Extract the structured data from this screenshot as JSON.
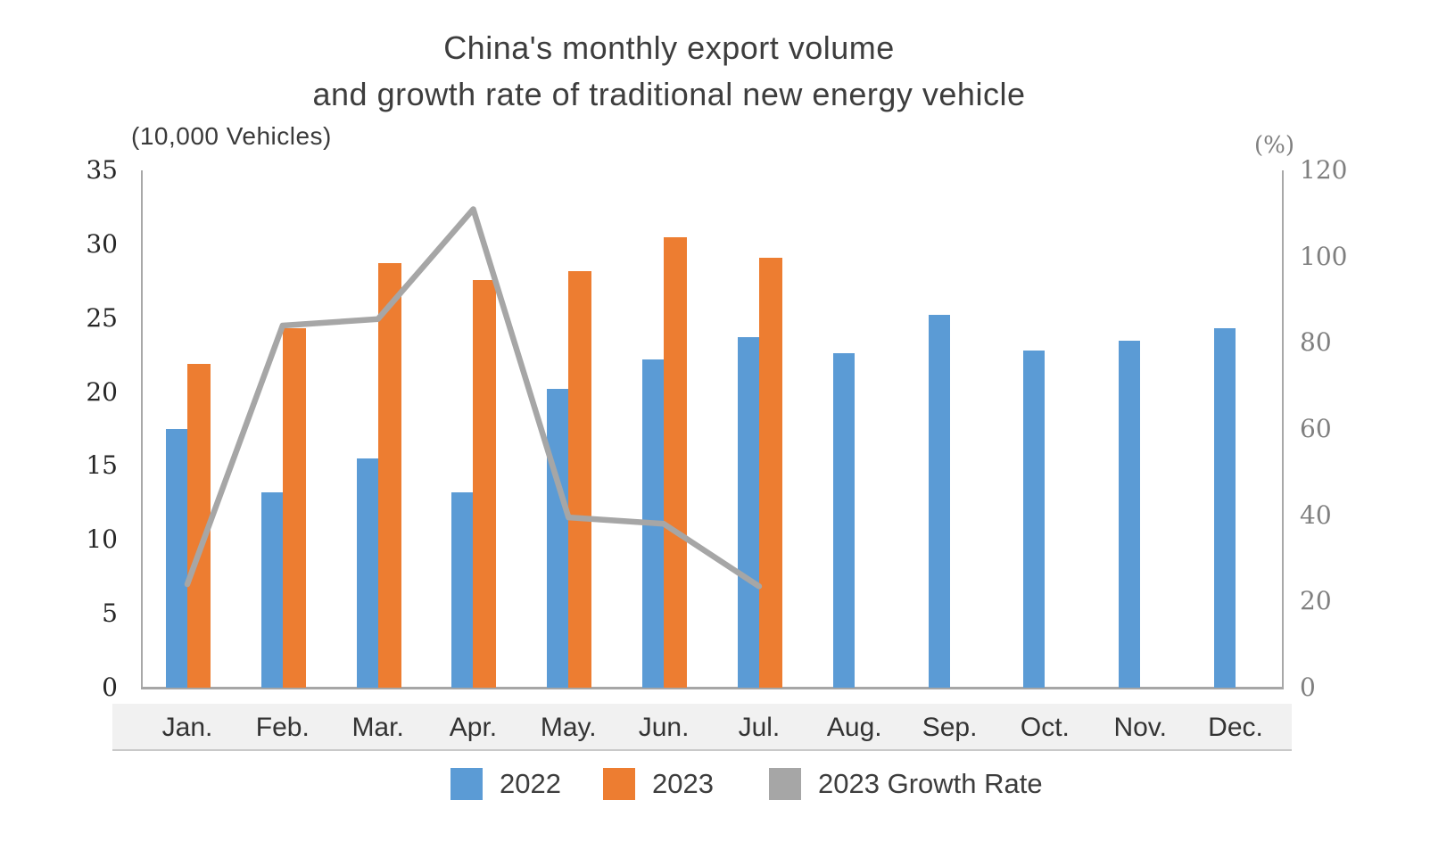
{
  "title_lines": [
    "China's monthly export volume",
    "and growth rate of traditional new energy vehicle"
  ],
  "left_axis": {
    "unit_label": "(10,000 Vehicles)",
    "ticks": [
      0,
      5,
      10,
      15,
      20,
      25,
      30,
      35
    ],
    "min": 0,
    "max": 35
  },
  "right_axis": {
    "unit_label": "(%)",
    "ticks": [
      0,
      20,
      40,
      60,
      80,
      100,
      120
    ],
    "min": 0,
    "max": 120
  },
  "legend": [
    {
      "label": "2022",
      "color": "#5B9BD5",
      "shape": "square"
    },
    {
      "label": "2023",
      "color": "#ED7D31",
      "shape": "square"
    },
    {
      "label": "2023 Growth Rate",
      "color": "#A6A6A6",
      "shape": "square"
    }
  ],
  "colors": {
    "bar_2022": "#5B9BD5",
    "bar_2023": "#ED7D31",
    "growth_line": "#A6A6A6",
    "axis_line": "#A6A6A6",
    "band_bg": "#F1F1F1",
    "title_text": "#3D3D3D",
    "left_tick_text": "#262626",
    "right_tick_text": "#7F7F7F"
  },
  "chart_data": {
    "type": "bar",
    "subtype": "grouped bars with overlay line",
    "title": "China's monthly export volume and growth rate of traditional new energy vehicle",
    "categories": [
      "Jan.",
      "Feb.",
      "Mar.",
      "Apr.",
      "May.",
      "Jun.",
      "Jul.",
      "Aug.",
      "Sep.",
      "Oct.",
      "Nov.",
      "Dec."
    ],
    "left_ylabel": "(10,000 Vehicles)",
    "right_ylabel": "(%)",
    "left_ylim": [
      0,
      35
    ],
    "right_ylim": [
      0,
      120
    ],
    "grid": false,
    "legend_position": "bottom",
    "series": [
      {
        "name": "2022",
        "type": "bar",
        "axis": "left",
        "color": "#5B9BD5",
        "values": [
          17.5,
          13.2,
          15.5,
          13.2,
          20.2,
          22.2,
          23.7,
          22.6,
          25.2,
          22.8,
          23.5,
          24.3
        ]
      },
      {
        "name": "2023",
        "type": "bar",
        "axis": "left",
        "color": "#ED7D31",
        "values": [
          21.9,
          24.3,
          28.7,
          27.6,
          28.2,
          30.5,
          29.1,
          null,
          null,
          null,
          null,
          null
        ]
      },
      {
        "name": "2023 Growth Rate",
        "type": "line",
        "axis": "right",
        "color": "#A6A6A6",
        "values": [
          24,
          84,
          85.5,
          111,
          39.5,
          38,
          23.5,
          null,
          null,
          null,
          null,
          null
        ]
      }
    ]
  }
}
